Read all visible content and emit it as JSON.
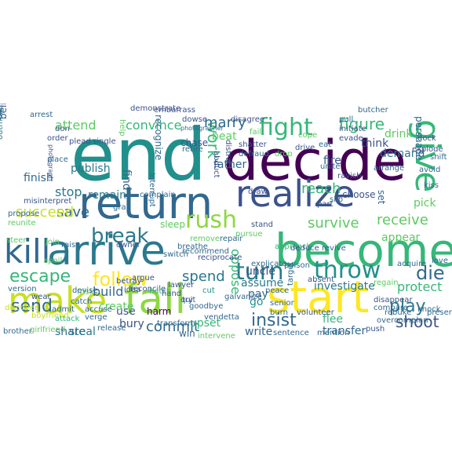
{
  "word_cloud": {
    "colors": {
      "dark_purple": "#440154",
      "indigo": "#3b528b",
      "blue": "#31688e",
      "teal": "#21908c",
      "sea_green": "#35b779",
      "green": "#5ec962",
      "lime": "#8fd744",
      "yellow": "#c8e020",
      "bright_yellow": "#fde725",
      "deep_teal": "#2a788e"
    },
    "words": [
      "end",
      "decide",
      "return",
      "become",
      "arrive",
      "realize",
      "kill",
      "make",
      "fall",
      "start",
      "give",
      "bring",
      "rush",
      "fight",
      "turn",
      "throw",
      "break",
      "escape",
      "follow",
      "send",
      "play",
      "insist",
      "shoot",
      "die",
      "commit",
      "spend",
      "work",
      "figure",
      "marry",
      "convince",
      "attend",
      "save",
      "stop",
      "succeed",
      "reach",
      "receive",
      "survive",
      "investigate",
      "protect",
      "build",
      "pay",
      "pick",
      "drink",
      "father",
      "finish",
      "publish",
      "believe",
      "beat",
      "fire",
      "demand",
      "think",
      "share",
      "steal",
      "find",
      "use",
      "bury",
      "create",
      "remain",
      "assume",
      "oppose",
      "uncle",
      "go",
      "upset",
      "write",
      "flee",
      "transfer",
      "appear",
      "persuade",
      "choose",
      "set",
      "sleep",
      "harm",
      "win",
      "recognize",
      "chase",
      "present",
      "outmaneuver",
      "misinterpret",
      "grab",
      "interrupt",
      "reconcile",
      "approach",
      "pursue",
      "hatch",
      "release",
      "brother",
      "help",
      "retire",
      "disagree",
      "distract",
      "drive",
      "unite",
      "pull",
      "initiate",
      "demonstrate",
      "embarrass",
      "butcher",
      "single",
      "plead",
      "place",
      "explode",
      "arrange",
      "evade",
      "avoid",
      "ravish",
      "complain",
      "propose",
      "reunite",
      "steer",
      "attack",
      "sentence",
      "mention",
      "intervene",
      "vendetta",
      "goodbye",
      "compare",
      "overcome",
      "regain",
      "knock",
      "love",
      "plan",
      "push",
      "disappear",
      "rebuke",
      "absent",
      "target",
      "senior",
      "burn",
      "peace",
      "deduce",
      "revive",
      "volunteer",
      "explicate",
      "transform",
      "betray",
      "idea",
      "lawyer",
      "remove",
      "recommend",
      "switch",
      "reciprocate",
      "argue",
      "cut",
      "admit",
      "catch",
      "verge",
      "accuse",
      "wear",
      "version",
      "spoil",
      "frisk",
      "owner",
      "hand",
      "quit",
      "join",
      "raise",
      "devise",
      "try",
      "photographer",
      "photograph",
      "cope",
      "dock",
      "poison",
      "dowse",
      "fail",
      "eat",
      "kiss",
      "shift",
      "part",
      "slip",
      "draw",
      "abduct",
      "defraud",
      "breathe",
      "shatter",
      "drop",
      "order",
      "don",
      "arrest",
      "discover",
      "boyfriend",
      "girlfriend",
      "galvanize",
      "acquire",
      "repair",
      "stand",
      "hunt"
    ]
  }
}
